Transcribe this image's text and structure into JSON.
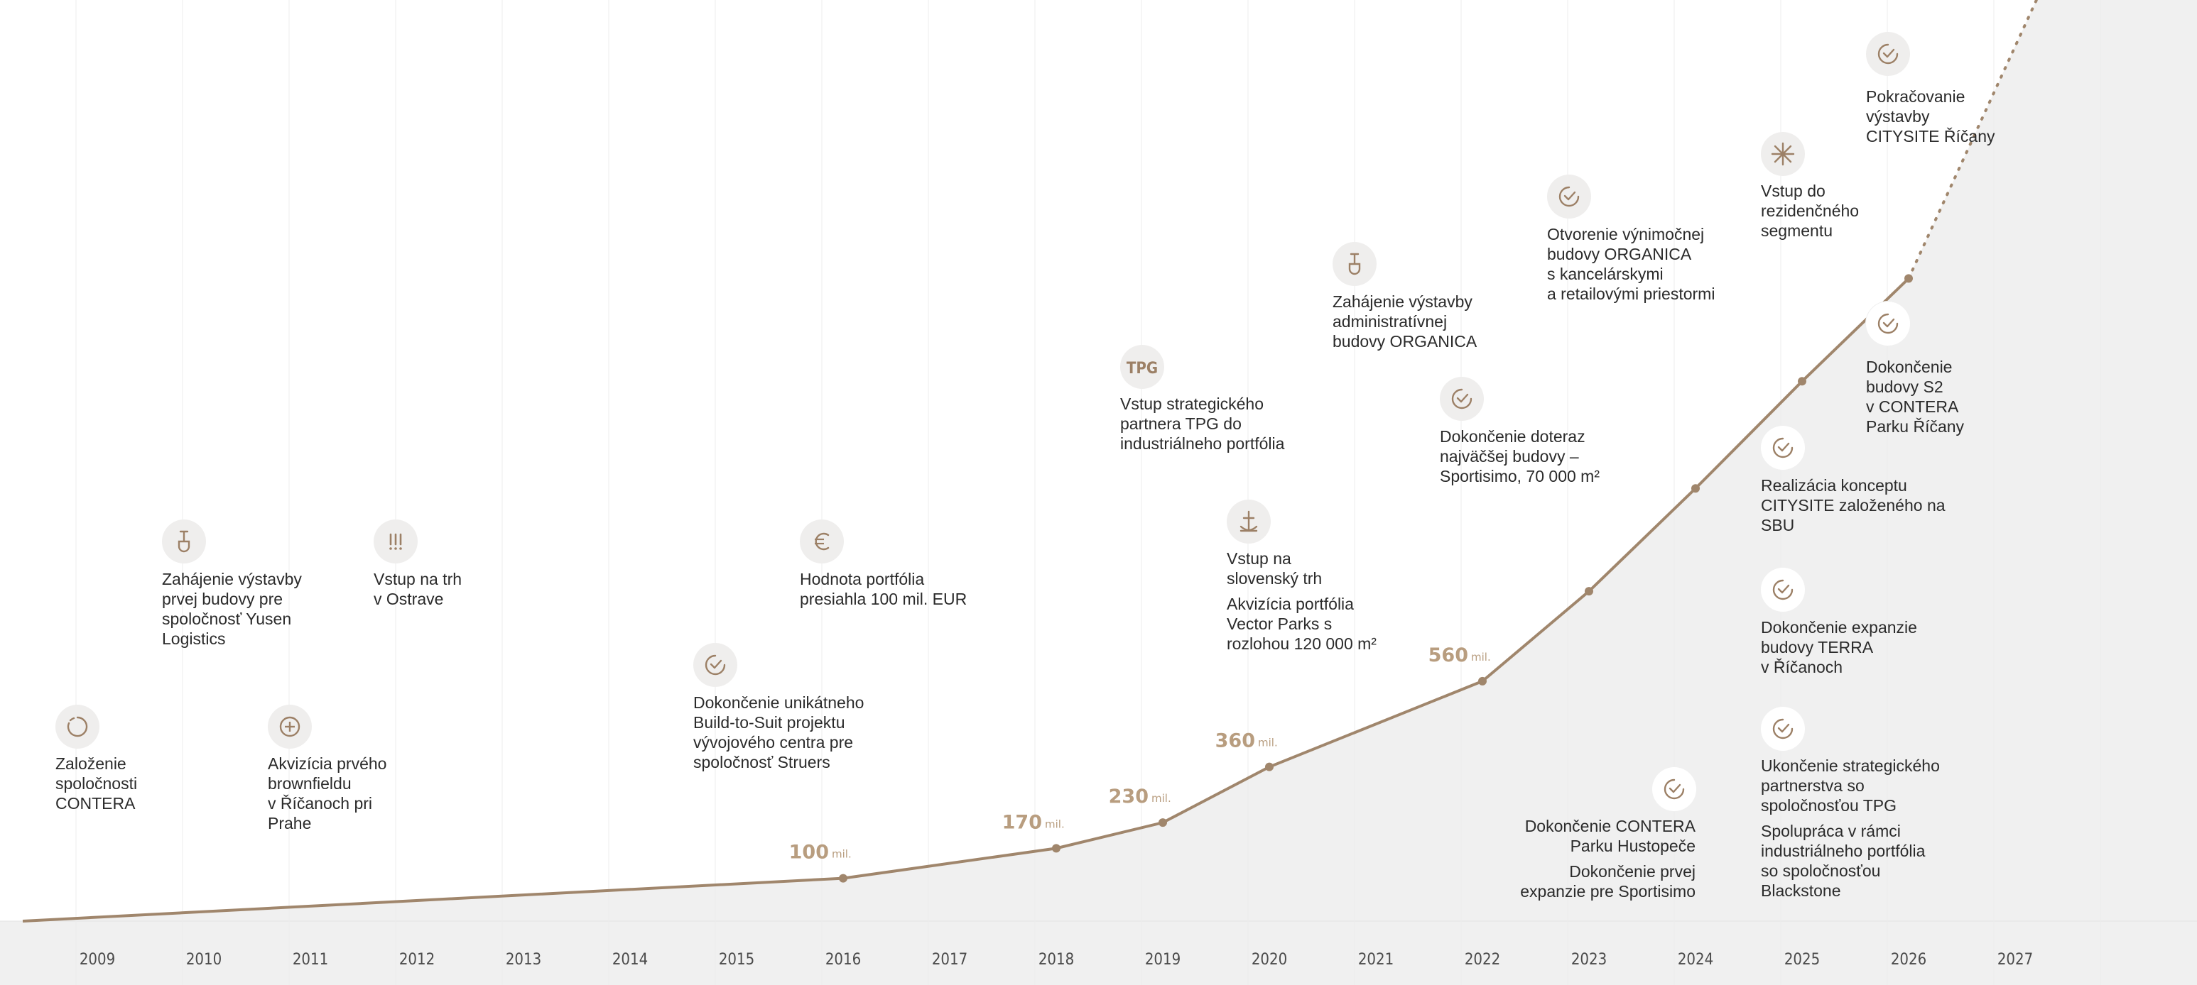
{
  "chart_data": {
    "type": "line",
    "title": "",
    "xlabel": "",
    "ylabel": "",
    "x_ticks": [
      "2009",
      "2010",
      "2011",
      "2012",
      "2013",
      "2014",
      "2015",
      "2016",
      "2017",
      "2018",
      "2019",
      "2020",
      "2021",
      "2022",
      "2023",
      "2024",
      "2025",
      "2026",
      "2027"
    ],
    "series": [
      {
        "values_actual": [
          {
            "x": 2008.3,
            "y": 0
          },
          {
            "x": 2016,
            "y": 100
          },
          {
            "x": 2018,
            "y": 170
          },
          {
            "x": 2019,
            "y": 230
          },
          {
            "x": 2020,
            "y": 360
          },
          {
            "x": 2022,
            "y": 560
          },
          {
            "x": 2023,
            "y": 770
          },
          {
            "x": 2024,
            "y": 1010
          },
          {
            "x": 2025,
            "y": 1260
          },
          {
            "x": 2026,
            "y": 1500
          }
        ],
        "values_projected": [
          {
            "x": 2026,
            "y": 1500
          },
          {
            "x": 2027.2,
            "y": 2150
          }
        ]
      }
    ],
    "data_labels": [
      {
        "x": 2016,
        "num": "100",
        "unit": "mil."
      },
      {
        "x": 2018,
        "num": "170",
        "unit": "mil."
      },
      {
        "x": 2019,
        "num": "230",
        "unit": "mil."
      },
      {
        "x": 2020,
        "num": "360",
        "unit": "mil."
      },
      {
        "x": 2022,
        "num": "560",
        "unit": "mil."
      }
    ],
    "grid": true,
    "area_fill": "#f0f0f0",
    "line_color": "#a0866c",
    "accent_color": "#b89d7f"
  },
  "events": {
    "e2009": {
      "icon": "loading-ring-icon",
      "text": "Založenie\nspoločnosti\nCONTERA"
    },
    "e2010": {
      "icon": "shovel-icon",
      "text": "Zahájenie výstavby\nprvej budovy pre\nspoločnosť Yusen\nLogistics"
    },
    "e2011": {
      "icon": "plus-circle-icon",
      "text": "Akvizícia prvého\nbrownfieldu\nv Říčanoch pri\nPrahe"
    },
    "e2012": {
      "icon": "exclamations-icon",
      "text": "Vstup na trh\nv Ostrave"
    },
    "e2015": {
      "icon": "check-icon",
      "text": "Dokončenie unikátneho\nBuild-to-Suit projektu\nvývojového centra pre\nspoločnosť Struers"
    },
    "e2016": {
      "icon": "euro-icon",
      "text": "Hodnota portfólia\npresiahla 100 mil. EUR"
    },
    "e2019": {
      "icon": "tpg-icon",
      "icon_text": "TPG",
      "text": "Vstup strategického\npartnera TPG do\nindustriálneho portfólia"
    },
    "e2020": {
      "icon": "anchor-icon",
      "text": "Vstup na\nslovenský trh",
      "text2": "Akvizícia portfólia\nVector Parks s\nrozlohou 120 000 m²"
    },
    "e2021": {
      "icon": "shovel-icon",
      "text": "Zahájenie výstavby\nadministratívnej\nbudovy ORGANICA"
    },
    "e2022": {
      "icon": "check-icon",
      "text": "Dokončenie doteraz\nnajväčšej budovy –\nSportisimo, 70 000 m²"
    },
    "e2023": {
      "icon": "check-icon",
      "text": "Otvorenie výnimočnej\nbudovy ORGANICA\ns kancelárskymi\na retailovými priestormi"
    },
    "e2024": {
      "icon": "check-icon",
      "text": "Dokončenie CONTERA\nParku Hustopeče",
      "text2": "Dokončenie prvej\nexpanzie pre Sportisimo"
    },
    "e2025a": {
      "icon": "snowflake-icon",
      "text": "Vstup do\nrezidenčného\nsegmentu"
    },
    "e2025b": {
      "icon": "check-icon",
      "text": "Realizácia konceptu\nCITYSITE založeného na\nSBU"
    },
    "e2025c": {
      "icon": "check-icon",
      "text": "Dokončenie expanzie\nbudovy TERRA\nv Říčanoch"
    },
    "e2025d": {
      "icon": "check-icon",
      "text": "Ukončenie strategického\npartnerstva so\nspoločnosťou TPG",
      "text2": "Spolupráca v rámci\nindustriálneho portfólia\nso spoločnosťou\nBlackstone"
    },
    "e2026a": {
      "icon": "check-icon",
      "text": "Pokračovanie\nvýstavby\nCITYSITE Říčany"
    },
    "e2026b": {
      "icon": "check-icon",
      "text": "Dokončenie\nbudovy S2\nv CONTERA\nParku Říčany"
    }
  }
}
